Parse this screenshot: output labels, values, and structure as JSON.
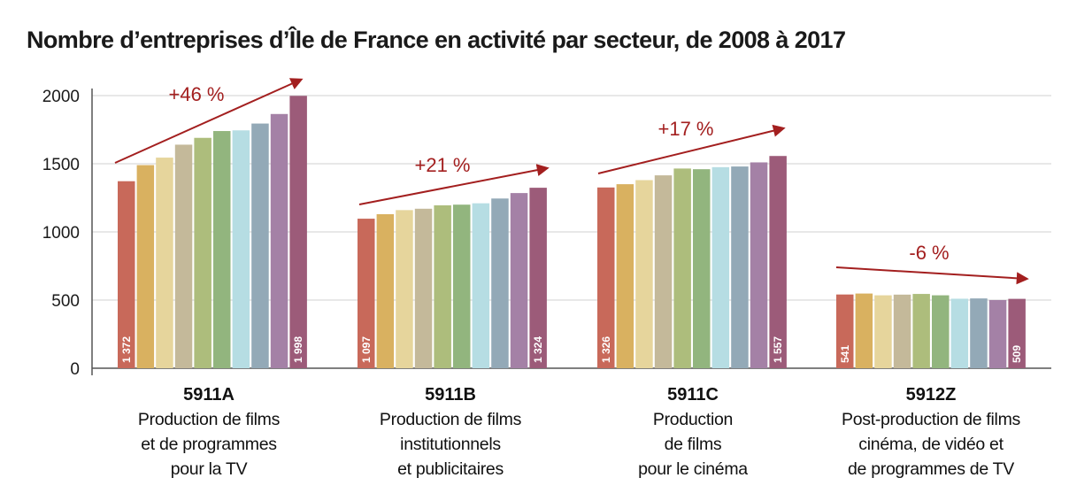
{
  "chart_data": {
    "type": "bar",
    "title": "Nombre d’entreprises d’Île de France en activité par secteur, de 2008 à 2017",
    "ylim": [
      0,
      2000
    ],
    "yticks": [
      "2000",
      "1500",
      "1000",
      "500",
      "0"
    ],
    "grid": true,
    "colors": [
      "#c8695a",
      "#d9b160",
      "#e6d59c",
      "#c4b99a",
      "#adbd7c",
      "#92b57e",
      "#b6dde3",
      "#93a9b7",
      "#a481a6",
      "#9c5b79"
    ],
    "arrow_color": "#a31f1f",
    "groups": [
      {
        "code": "5911A",
        "desc": [
          "Production de films",
          "et de programmes",
          "pour la TV"
        ],
        "values": [
          1372,
          1490,
          1545,
          1640,
          1690,
          1740,
          1745,
          1795,
          1865,
          1998
        ],
        "first_label": "1 372",
        "last_label": "1 998",
        "change": "+46 %"
      },
      {
        "code": "5911B",
        "desc": [
          "Production de films",
          "institutionnels",
          "et publicitaires"
        ],
        "values": [
          1097,
          1130,
          1160,
          1170,
          1195,
          1200,
          1210,
          1245,
          1285,
          1324
        ],
        "first_label": "1 097",
        "last_label": "1 324",
        "change": "+21 %"
      },
      {
        "code": "5911C",
        "desc": [
          "Production",
          "de films",
          "pour le cinéma"
        ],
        "values": [
          1326,
          1350,
          1380,
          1415,
          1465,
          1460,
          1475,
          1480,
          1510,
          1557
        ],
        "first_label": "1 326",
        "last_label": "1 557",
        "change": "+17 %"
      },
      {
        "code": "5912Z",
        "desc": [
          "Post-production de films",
          "cinéma, de vidéo et",
          "de programmes de TV"
        ],
        "values": [
          541,
          548,
          535,
          540,
          545,
          535,
          510,
          512,
          500,
          509
        ],
        "first_label": "541",
        "last_label": "509",
        "change": "-6 %"
      }
    ]
  }
}
